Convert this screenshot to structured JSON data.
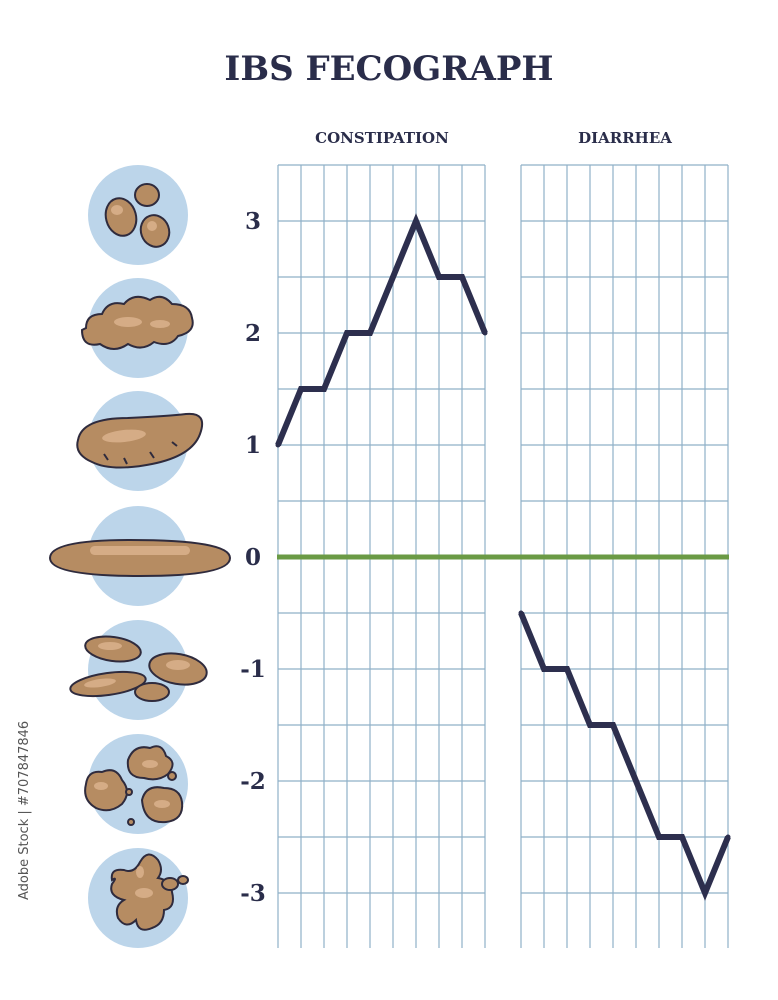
{
  "chart_data": {
    "type": "line",
    "title": "IBS FECOGRAPH",
    "y_ticks": [
      "3",
      "2",
      "1",
      "0",
      "-1",
      "-2",
      "-3"
    ],
    "ylim": [
      -3.5,
      3.5
    ],
    "grid": true,
    "panels": [
      {
        "name": "CONSTIPATION",
        "x": [
          0,
          1,
          2,
          3,
          4,
          5,
          6,
          7,
          8,
          9
        ],
        "values": [
          1,
          1.5,
          1.5,
          2,
          2,
          2.5,
          3,
          2.5,
          2.5,
          2
        ]
      },
      {
        "name": "DIARRHEA",
        "x": [
          0,
          1,
          2,
          3,
          4,
          5,
          6,
          7,
          8,
          9
        ],
        "values": [
          -0.5,
          -1,
          -1,
          -1.5,
          -1.5,
          -2,
          -2.5,
          -2.5,
          -3,
          -2.5
        ]
      }
    ],
    "colors": {
      "line": "#2d2f4e",
      "zero_line": "#6a9a45",
      "grid": "#8fb0c8",
      "circle": "#bcd5ea",
      "stool": "#b68c62"
    }
  },
  "stool_icons": [
    "hard-lumps-icon",
    "lumpy-sausage-icon",
    "cracked-sausage-icon",
    "smooth-sausage-icon",
    "soft-blobs-icon",
    "fluffy-pieces-icon",
    "watery-icon"
  ],
  "credit": "Adobe Stock | #707847846"
}
